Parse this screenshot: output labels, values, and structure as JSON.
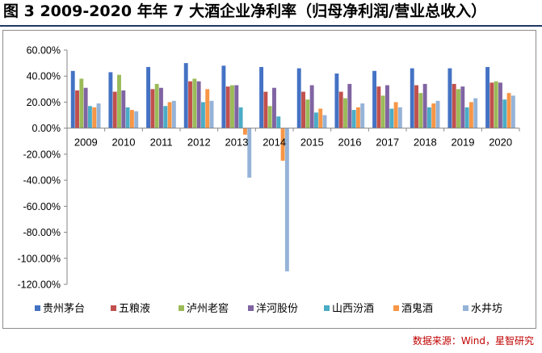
{
  "figure": {
    "title": "图 3  2009-2020 年年 7 大酒企业净利率（归母净利润/营业总收入）",
    "source": "数据来源：Wind，星智研究"
  },
  "chart_data": {
    "type": "bar",
    "title": "图 3  2009-2020 年年 7 大酒企业净利率（归母净利润/营业总收入）",
    "xlabel": "",
    "ylabel": "",
    "ylim": [
      -120,
      60
    ],
    "ytick_step": 20,
    "ytick_labels": [
      "60.00%",
      "40.00%",
      "20.00%",
      "0.00%",
      "-20.00%",
      "-40.00%",
      "-60.00%",
      "-80.00%",
      "-100.00%",
      "-120.00%"
    ],
    "value_unit": "%",
    "grid": false,
    "legend_position": "bottom",
    "categories": [
      "2009",
      "2010",
      "2011",
      "2012",
      "2013",
      "2014",
      "2015",
      "2016",
      "2017",
      "2018",
      "2019",
      "2020"
    ],
    "series": [
      {
        "name": "贵州茅台",
        "color": "#4472c4",
        "values": [
          44,
          43,
          47,
          50,
          48,
          47,
          46,
          42,
          44,
          46,
          46,
          47
        ]
      },
      {
        "name": "五粮液",
        "color": "#c0504d",
        "values": [
          29,
          28,
          30,
          36,
          32,
          28,
          28,
          28,
          32,
          33,
          34,
          35
        ]
      },
      {
        "name": "泸州老窖",
        "color": "#9bbb59",
        "values": [
          38,
          41,
          34,
          38,
          33,
          17,
          22,
          23,
          25,
          27,
          30,
          36
        ]
      },
      {
        "name": "洋河股份",
        "color": "#8064a2",
        "values": [
          31,
          29,
          31,
          36,
          33,
          31,
          33,
          34,
          33,
          34,
          32,
          35
        ]
      },
      {
        "name": "山西汾酒",
        "color": "#4bacc6",
        "values": [
          17,
          16,
          17,
          20,
          16,
          9,
          12,
          14,
          15,
          16,
          16,
          22
        ]
      },
      {
        "name": "酒鬼酒",
        "color": "#f79646",
        "values": [
          16,
          14,
          20,
          30,
          -5,
          -25,
          15,
          16,
          20,
          19,
          20,
          27
        ]
      },
      {
        "name": "水井坊",
        "color": "#95b3d7",
        "values": [
          19,
          13,
          21,
          21,
          -38,
          -110,
          10,
          19,
          16,
          21,
          23,
          25
        ]
      }
    ]
  }
}
